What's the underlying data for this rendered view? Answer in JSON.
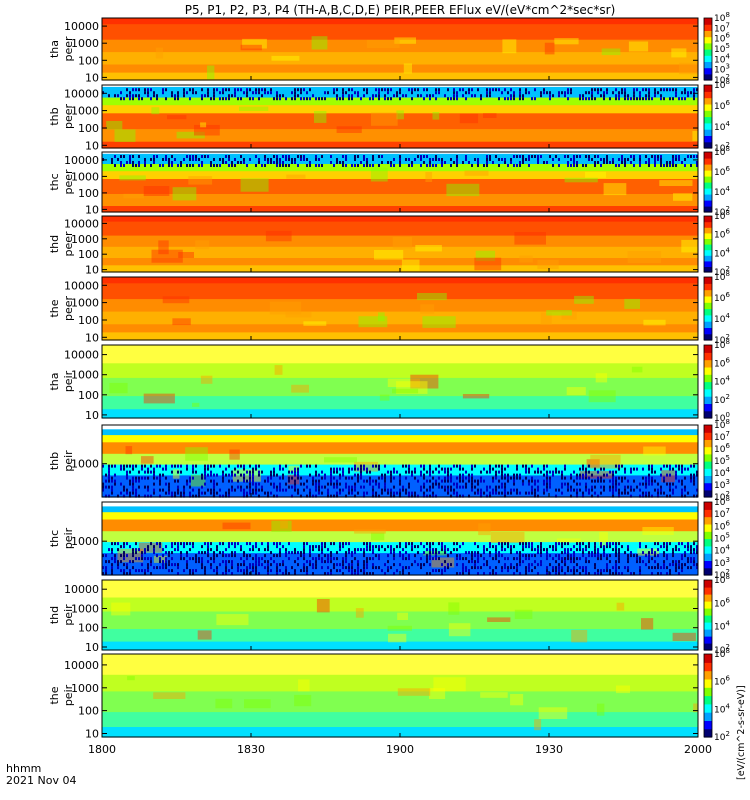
{
  "chart_data": {
    "type": "heatmap",
    "title": "P5, P1, P2, P3, P4 (TH-A,B,C,D,E) PEIR,PEER EFlux eV/(eV*cm^2*sec*sr)",
    "x_label_left": "hhmm",
    "x_label_date": "2021 Nov 04",
    "x_ticks": [
      "1800",
      "1830",
      "1900",
      "1930",
      "2000"
    ],
    "x_range": [
      1800,
      2000
    ],
    "colorbar_unit": "[eV/(cm^2-s-sr-eV)]",
    "colorscale": [
      "#000070",
      "#0000ff",
      "#00a0ff",
      "#00ffff",
      "#00ff80",
      "#80ff00",
      "#ffff00",
      "#ffa000",
      "#ff3000",
      "#cc0000"
    ],
    "panels": [
      {
        "label_top": "tha",
        "label_bottom": "peer",
        "yscale": "log",
        "y_range": [
          7,
          30000
        ],
        "y_ticks": [
          "10",
          "100",
          "1000",
          "10000"
        ],
        "cb_ticks": [
          "10^2",
          "10^3",
          "10^4",
          "10^5",
          "10^6",
          "10^7",
          "10^8"
        ],
        "cb_range": [
          2,
          8
        ]
      },
      {
        "label_top": "thb",
        "label_bottom": "peer",
        "yscale": "log",
        "y_range": [
          7,
          30000
        ],
        "y_ticks": [
          "10",
          "100",
          "1000",
          "10000"
        ],
        "cb_ticks": [
          "10^2",
          "10^4",
          "10^6",
          "10^8"
        ],
        "cb_range": [
          2,
          8
        ]
      },
      {
        "label_top": "thc",
        "label_bottom": "peer",
        "yscale": "log",
        "y_range": [
          7,
          30000
        ],
        "y_ticks": [
          "10",
          "100",
          "1000",
          "10000"
        ],
        "cb_ticks": [
          "10^2",
          "10^4",
          "10^6",
          "10^8"
        ],
        "cb_range": [
          2,
          8
        ]
      },
      {
        "label_top": "thd",
        "label_bottom": "peer",
        "yscale": "log",
        "y_range": [
          7,
          30000
        ],
        "y_ticks": [
          "10",
          "100",
          "1000",
          "10000"
        ],
        "cb_ticks": [
          "10^2",
          "10^4",
          "10^6",
          "10^8"
        ],
        "cb_range": [
          2,
          8
        ]
      },
      {
        "label_top": "the",
        "label_bottom": "peer",
        "yscale": "log",
        "y_range": [
          7,
          30000
        ],
        "y_ticks": [
          "10",
          "100",
          "1000",
          "10000"
        ],
        "cb_ticks": [
          "10^2",
          "10^4",
          "10^6",
          "10^8"
        ],
        "cb_range": [
          2,
          8
        ]
      },
      {
        "label_top": "tha",
        "label_bottom": "peir",
        "yscale": "log",
        "y_range": [
          7,
          30000
        ],
        "y_ticks": [
          "10",
          "100",
          "1000",
          "10000"
        ],
        "cb_ticks": [
          "10^0",
          "10^2",
          "10^4",
          "10^6",
          "10^8"
        ],
        "cb_range": [
          0,
          8
        ]
      },
      {
        "label_top": "thb",
        "label_bottom": "peir",
        "yscale": "log",
        "y_range": [
          250,
          5000
        ],
        "y_ticks": [
          "1000"
        ],
        "cb_ticks": [
          "10^2",
          "10^3",
          "10^4",
          "10^5",
          "10^6",
          "10^7",
          "10^8"
        ],
        "cb_range": [
          2,
          8
        ]
      },
      {
        "label_top": "thc",
        "label_bottom": "peir",
        "yscale": "log",
        "y_range": [
          250,
          5000
        ],
        "y_ticks": [
          "1000"
        ],
        "cb_ticks": [
          "10^2",
          "10^3",
          "10^4",
          "10^5",
          "10^6",
          "10^7",
          "10^8"
        ],
        "cb_range": [
          2,
          8
        ]
      },
      {
        "label_top": "thd",
        "label_bottom": "peir",
        "yscale": "log",
        "y_range": [
          7,
          30000
        ],
        "y_ticks": [
          "10",
          "100",
          "1000",
          "10000"
        ],
        "cb_ticks": [
          "10^2",
          "10^4",
          "10^6",
          "10^8"
        ],
        "cb_range": [
          2,
          8
        ]
      },
      {
        "label_top": "the",
        "label_bottom": "peir",
        "yscale": "log",
        "y_range": [
          7,
          30000
        ],
        "y_ticks": [
          "10",
          "100",
          "1000",
          "10000"
        ],
        "cb_ticks": [
          "10^2",
          "10^4",
          "10^6",
          "10^8"
        ],
        "cb_range": [
          2,
          8
        ]
      }
    ]
  }
}
